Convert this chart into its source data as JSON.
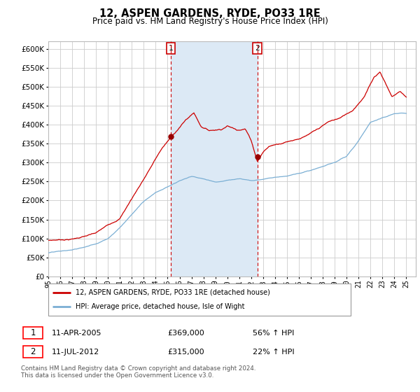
{
  "title": "12, ASPEN GARDENS, RYDE, PO33 1RE",
  "subtitle": "Price paid vs. HM Land Registry's House Price Index (HPI)",
  "legend_line1": "12, ASPEN GARDENS, RYDE, PO33 1RE (detached house)",
  "legend_line2": "HPI: Average price, detached house, Isle of Wight",
  "footnote": "Contains HM Land Registry data © Crown copyright and database right 2024.\nThis data is licensed under the Open Government Licence v3.0.",
  "transaction1_date": "11-APR-2005",
  "transaction1_price": "£369,000",
  "transaction1_hpi": "56% ↑ HPI",
  "transaction2_date": "11-JUL-2012",
  "transaction2_price": "£315,000",
  "transaction2_hpi": "22% ↑ HPI",
  "red_color": "#cc0000",
  "blue_color": "#7bafd4",
  "shade_color": "#dce9f5",
  "grid_color": "#cccccc",
  "ylim": [
    0,
    620000
  ],
  "yticks": [
    0,
    50000,
    100000,
    150000,
    200000,
    250000,
    300000,
    350000,
    400000,
    450000,
    500000,
    550000,
    600000
  ],
  "transaction1_x": 2005.27,
  "transaction1_y": 369000,
  "transaction2_x": 2012.52,
  "transaction2_y": 315000,
  "xlim_start": 1995,
  "xlim_end": 2025.8
}
